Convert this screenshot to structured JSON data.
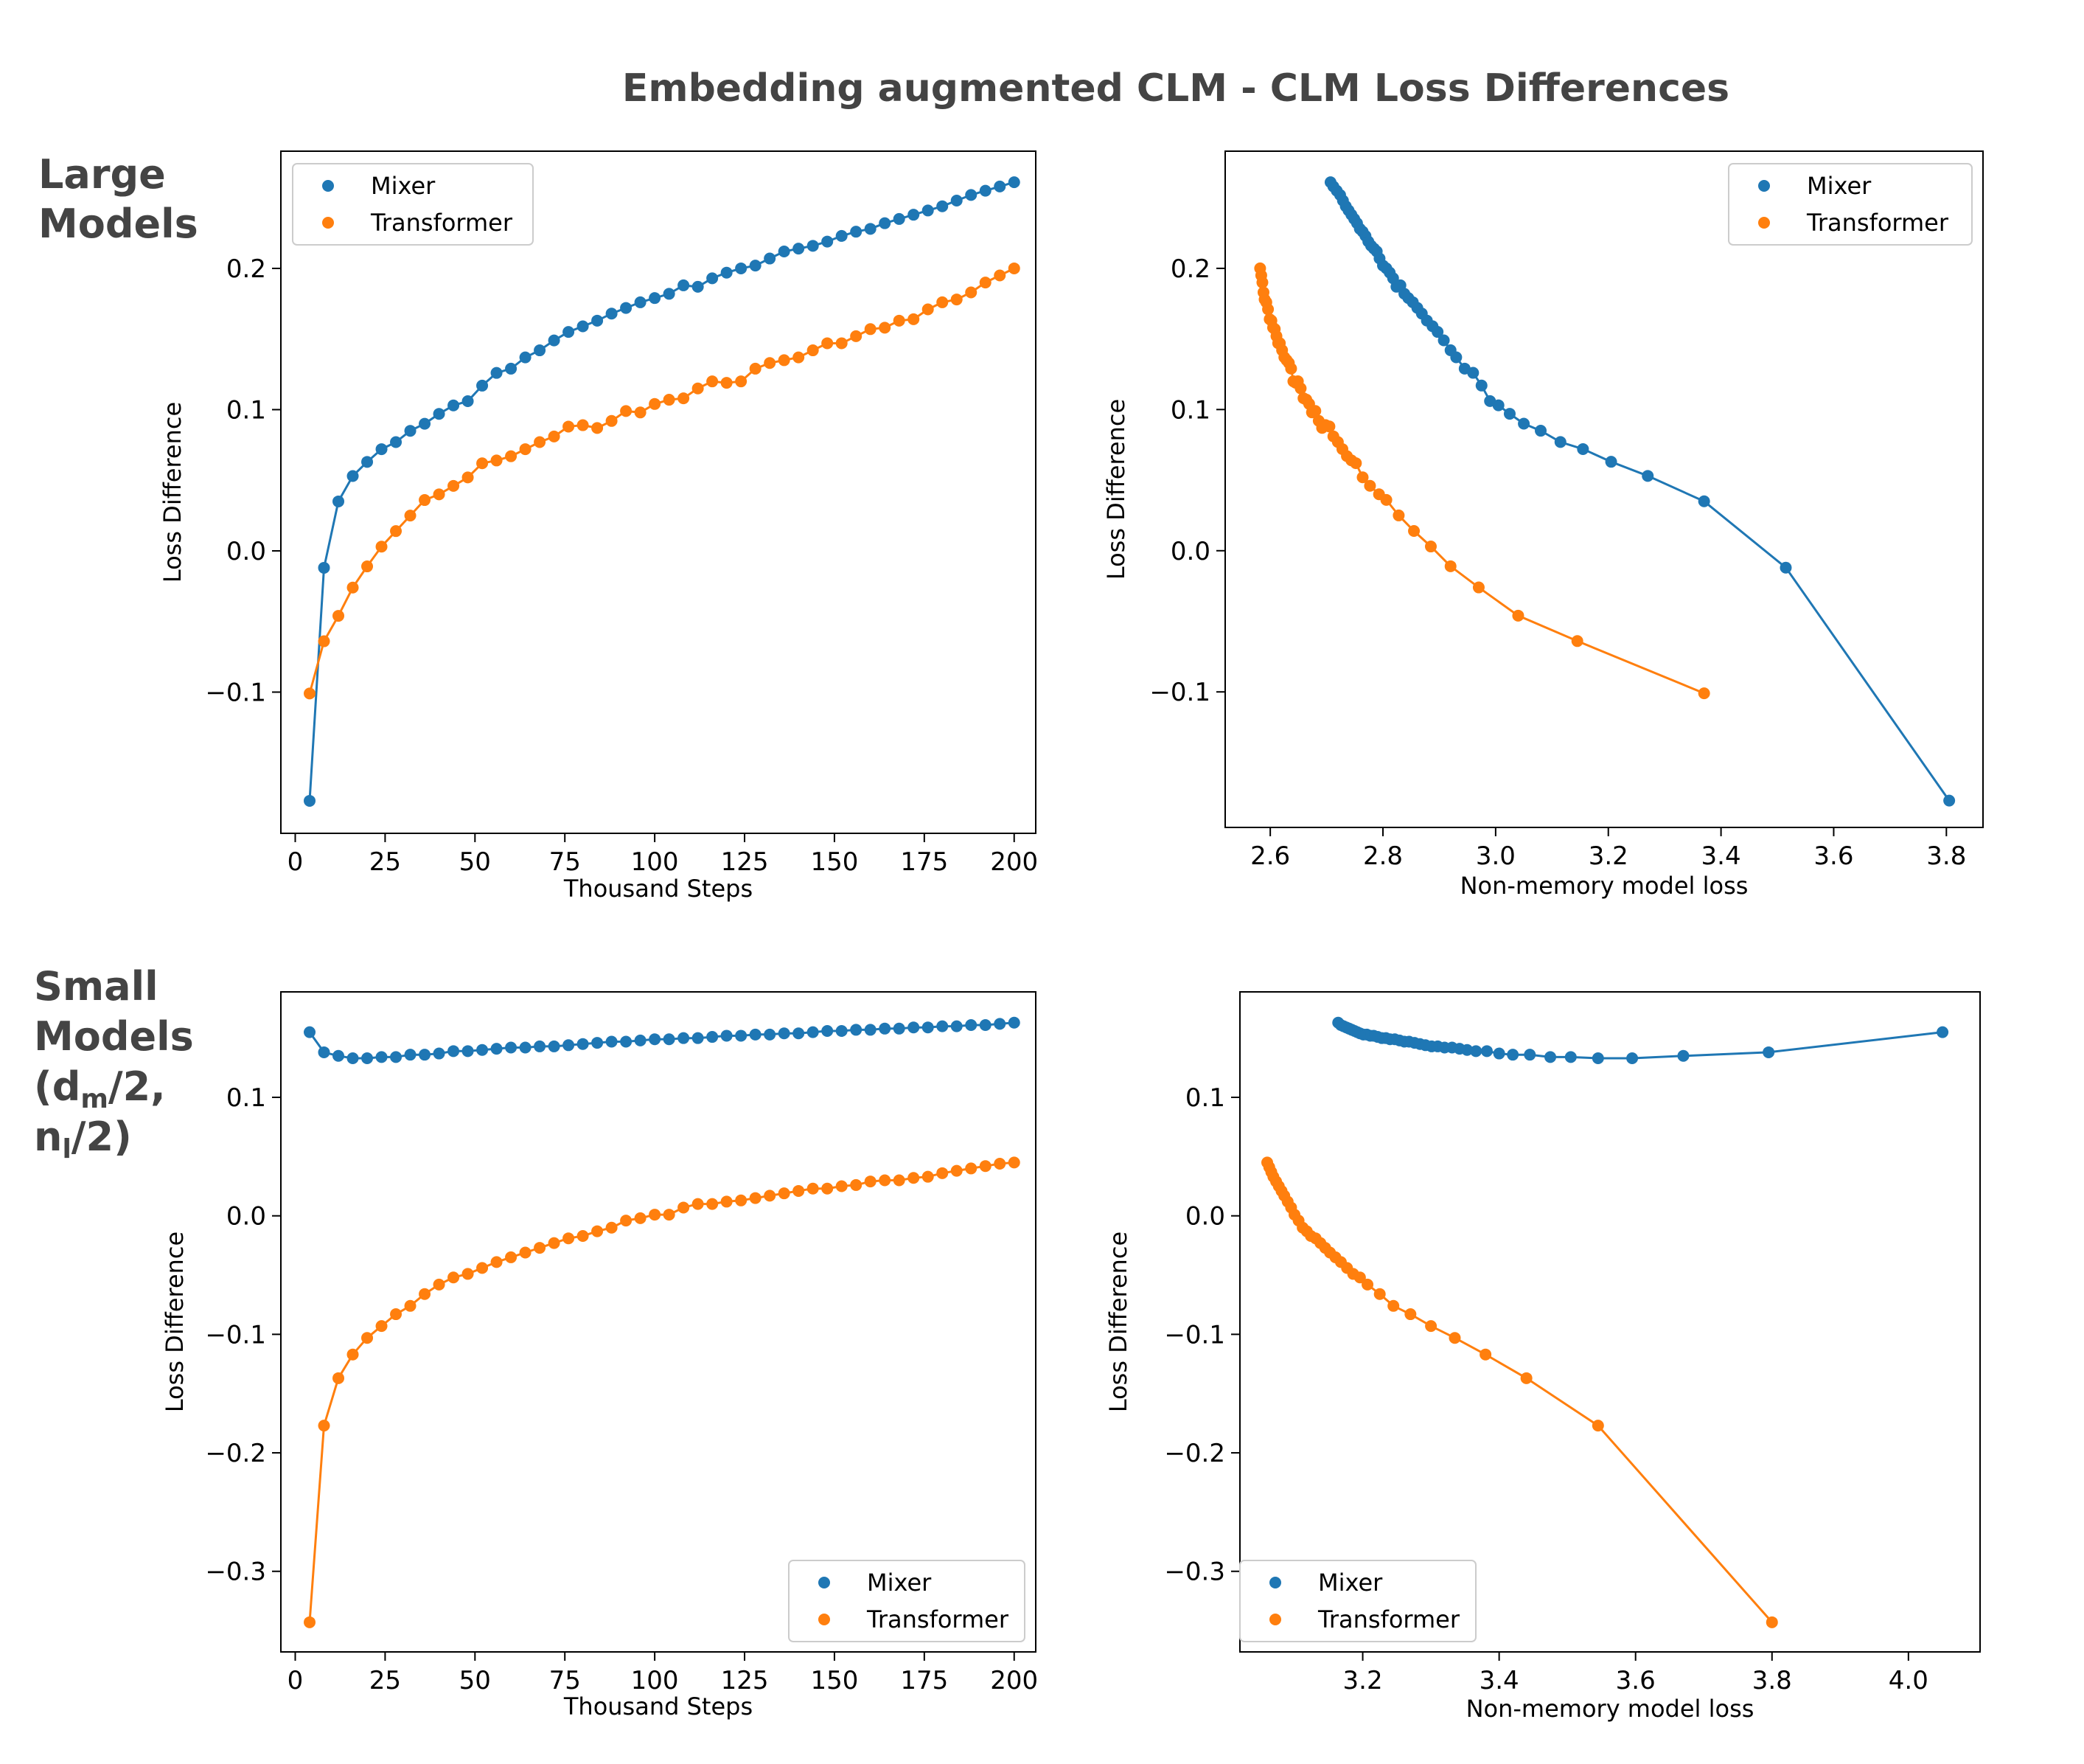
{
  "figure": {
    "title": "Embedding augmented CLM - CLM Loss Differences",
    "row_labels": {
      "large": [
        "Large",
        "Models"
      ],
      "small": {
        "line1": "Small",
        "line2": "Models",
        "d": "d",
        "m": "m",
        "half1": "/2,",
        "n": "n",
        "l": "l",
        "half2": "/2)",
        "open": "("
      }
    }
  },
  "colors": {
    "mixer": "#1f77b4",
    "transformer": "#ff7f0e"
  },
  "chart_data": [
    {
      "id": "large-steps",
      "type": "line",
      "title": "",
      "xlabel": "Thousand Steps",
      "ylabel": "Loss Difference",
      "xlim": [
        -4,
        206
      ],
      "ylim": [
        -0.2,
        0.283
      ],
      "xticks": [
        0,
        25,
        50,
        75,
        100,
        125,
        150,
        175,
        200
      ],
      "yticks": [
        -0.1,
        0.0,
        0.1,
        0.2
      ],
      "legend": "top-left",
      "series": [
        {
          "name": "Mixer",
          "x": [
            4,
            8,
            12,
            16,
            20,
            24,
            28,
            32,
            36,
            40,
            44,
            48,
            52,
            56,
            60,
            64,
            68,
            72,
            76,
            80,
            84,
            88,
            92,
            96,
            100,
            104,
            108,
            112,
            116,
            120,
            124,
            128,
            132,
            136,
            140,
            144,
            148,
            152,
            156,
            160,
            164,
            168,
            172,
            176,
            180,
            184,
            188,
            192,
            196,
            200
          ],
          "y": [
            -0.177,
            -0.012,
            0.035,
            0.053,
            0.063,
            0.072,
            0.077,
            0.085,
            0.09,
            0.097,
            0.103,
            0.106,
            0.117,
            0.126,
            0.129,
            0.137,
            0.142,
            0.149,
            0.155,
            0.159,
            0.163,
            0.168,
            0.172,
            0.176,
            0.179,
            0.182,
            0.188,
            0.187,
            0.193,
            0.197,
            0.2,
            0.202,
            0.207,
            0.212,
            0.214,
            0.216,
            0.219,
            0.223,
            0.226,
            0.228,
            0.232,
            0.235,
            0.238,
            0.241,
            0.244,
            0.248,
            0.252,
            0.255,
            0.258,
            0.261
          ]
        },
        {
          "name": "Transformer",
          "x": [
            4,
            8,
            12,
            16,
            20,
            24,
            28,
            32,
            36,
            40,
            44,
            48,
            52,
            56,
            60,
            64,
            68,
            72,
            76,
            80,
            84,
            88,
            92,
            96,
            100,
            104,
            108,
            112,
            116,
            120,
            124,
            128,
            132,
            136,
            140,
            144,
            148,
            152,
            156,
            160,
            164,
            168,
            172,
            176,
            180,
            184,
            188,
            192,
            196,
            200
          ],
          "y": [
            -0.101,
            -0.064,
            -0.046,
            -0.026,
            -0.011,
            0.003,
            0.014,
            0.025,
            0.036,
            0.04,
            0.046,
            0.052,
            0.062,
            0.064,
            0.067,
            0.072,
            0.077,
            0.081,
            0.088,
            0.089,
            0.087,
            0.092,
            0.099,
            0.098,
            0.104,
            0.107,
            0.108,
            0.115,
            0.12,
            0.119,
            0.12,
            0.129,
            0.133,
            0.135,
            0.137,
            0.142,
            0.147,
            0.147,
            0.152,
            0.157,
            0.158,
            0.163,
            0.164,
            0.171,
            0.176,
            0.178,
            0.183,
            0.19,
            0.195,
            0.2
          ]
        }
      ]
    },
    {
      "id": "large-loss",
      "type": "line",
      "title": "",
      "xlabel": "Non-memory model loss",
      "ylabel": "Loss Difference",
      "xlim": [
        2.52,
        3.865
      ],
      "ylim": [
        -0.196,
        0.283
      ],
      "xticks": [
        2.6,
        2.8,
        3.0,
        3.2,
        3.4,
        3.6,
        3.8
      ],
      "yticks": [
        -0.1,
        0.0,
        0.1,
        0.2
      ],
      "legend": "top-right",
      "series": [
        {
          "name": "Mixer",
          "x": [
            3.805,
            3.515,
            3.37,
            3.27,
            3.205,
            3.155,
            3.115,
            3.08,
            3.05,
            3.025,
            3.005,
            2.99,
            2.975,
            2.96,
            2.945,
            2.93,
            2.92,
            2.908,
            2.897,
            2.888,
            2.878,
            2.869,
            2.861,
            2.853,
            2.845,
            2.838,
            2.831,
            2.824,
            2.818,
            2.812,
            2.806,
            2.8,
            2.794,
            2.789,
            2.784,
            2.779,
            2.774,
            2.769,
            2.764,
            2.759,
            2.754,
            2.749,
            2.744,
            2.739,
            2.734,
            2.729,
            2.724,
            2.718,
            2.712,
            2.707
          ],
          "y": [
            -0.177,
            -0.012,
            0.035,
            0.053,
            0.063,
            0.072,
            0.077,
            0.085,
            0.09,
            0.097,
            0.103,
            0.106,
            0.117,
            0.126,
            0.129,
            0.137,
            0.142,
            0.149,
            0.155,
            0.159,
            0.163,
            0.168,
            0.172,
            0.176,
            0.179,
            0.182,
            0.188,
            0.187,
            0.193,
            0.197,
            0.2,
            0.202,
            0.207,
            0.212,
            0.214,
            0.216,
            0.219,
            0.223,
            0.226,
            0.228,
            0.232,
            0.235,
            0.238,
            0.241,
            0.244,
            0.248,
            0.252,
            0.255,
            0.258,
            0.261
          ]
        },
        {
          "name": "Transformer",
          "x": [
            3.37,
            3.145,
            3.04,
            2.97,
            2.92,
            2.885,
            2.855,
            2.828,
            2.806,
            2.793,
            2.777,
            2.764,
            2.752,
            2.744,
            2.736,
            2.728,
            2.72,
            2.712,
            2.705,
            2.698,
            2.692,
            2.686,
            2.68,
            2.674,
            2.669,
            2.664,
            2.659,
            2.654,
            2.649,
            2.645,
            2.641,
            2.637,
            2.633,
            2.629,
            2.625,
            2.621,
            2.617,
            2.614,
            2.611,
            2.608,
            2.605,
            2.602,
            2.599,
            2.596,
            2.593,
            2.59,
            2.588,
            2.586,
            2.584,
            2.582
          ],
          "y": [
            -0.101,
            -0.064,
            -0.046,
            -0.026,
            -0.011,
            0.003,
            0.014,
            0.025,
            0.036,
            0.04,
            0.046,
            0.052,
            0.062,
            0.064,
            0.067,
            0.072,
            0.077,
            0.081,
            0.088,
            0.089,
            0.087,
            0.092,
            0.099,
            0.098,
            0.104,
            0.107,
            0.108,
            0.115,
            0.12,
            0.119,
            0.12,
            0.129,
            0.133,
            0.135,
            0.137,
            0.142,
            0.147,
            0.147,
            0.152,
            0.157,
            0.158,
            0.163,
            0.164,
            0.171,
            0.176,
            0.178,
            0.183,
            0.19,
            0.195,
            0.2
          ]
        }
      ]
    },
    {
      "id": "small-steps",
      "type": "line",
      "title": "",
      "xlabel": "Thousand Steps",
      "ylabel": "Loss Difference",
      "xlim": [
        -4,
        206
      ],
      "ylim": [
        -0.368,
        0.189
      ],
      "xticks": [
        0,
        25,
        50,
        75,
        100,
        125,
        150,
        175,
        200
      ],
      "yticks": [
        -0.3,
        -0.2,
        -0.1,
        0.0,
        0.1
      ],
      "legend": "bottom-right",
      "series": [
        {
          "name": "Mixer",
          "x": [
            4,
            8,
            12,
            16,
            20,
            24,
            28,
            32,
            36,
            40,
            44,
            48,
            52,
            56,
            60,
            64,
            68,
            72,
            76,
            80,
            84,
            88,
            92,
            96,
            100,
            104,
            108,
            112,
            116,
            120,
            124,
            128,
            132,
            136,
            140,
            144,
            148,
            152,
            156,
            160,
            164,
            168,
            172,
            176,
            180,
            184,
            188,
            192,
            196,
            200
          ],
          "y": [
            0.155,
            0.138,
            0.135,
            0.133,
            0.133,
            0.134,
            0.134,
            0.136,
            0.136,
            0.137,
            0.139,
            0.139,
            0.14,
            0.141,
            0.142,
            0.142,
            0.143,
            0.143,
            0.144,
            0.145,
            0.146,
            0.147,
            0.147,
            0.148,
            0.149,
            0.149,
            0.15,
            0.15,
            0.151,
            0.152,
            0.152,
            0.153,
            0.153,
            0.154,
            0.154,
            0.155,
            0.156,
            0.156,
            0.157,
            0.157,
            0.158,
            0.158,
            0.159,
            0.159,
            0.16,
            0.16,
            0.161,
            0.161,
            0.162,
            0.163
          ]
        },
        {
          "name": "Transformer",
          "x": [
            4,
            8,
            12,
            16,
            20,
            24,
            28,
            32,
            36,
            40,
            44,
            48,
            52,
            56,
            60,
            64,
            68,
            72,
            76,
            80,
            84,
            88,
            92,
            96,
            100,
            104,
            108,
            112,
            116,
            120,
            124,
            128,
            132,
            136,
            140,
            144,
            148,
            152,
            156,
            160,
            164,
            168,
            172,
            176,
            180,
            184,
            188,
            192,
            196,
            200
          ],
          "y": [
            -0.343,
            -0.177,
            -0.137,
            -0.117,
            -0.103,
            -0.093,
            -0.083,
            -0.076,
            -0.066,
            -0.058,
            -0.052,
            -0.049,
            -0.044,
            -0.039,
            -0.035,
            -0.031,
            -0.027,
            -0.023,
            -0.019,
            -0.017,
            -0.013,
            -0.01,
            -0.004,
            -0.002,
            0.001,
            0.001,
            0.007,
            0.01,
            0.01,
            0.012,
            0.013,
            0.015,
            0.017,
            0.019,
            0.021,
            0.023,
            0.023,
            0.025,
            0.026,
            0.029,
            0.03,
            0.03,
            0.032,
            0.033,
            0.036,
            0.038,
            0.04,
            0.042,
            0.044,
            0.045
          ]
        }
      ]
    },
    {
      "id": "small-loss",
      "type": "line",
      "title": "",
      "xlabel": "Non-memory model loss",
      "ylabel": "Loss Difference",
      "xlim": [
        3.02,
        4.105
      ],
      "ylim": [
        -0.368,
        0.189
      ],
      "xticks": [
        3.2,
        3.4,
        3.6,
        3.8,
        4.0
      ],
      "yticks": [
        -0.3,
        -0.2,
        -0.1,
        0.0,
        0.1
      ],
      "legend": "bottom-left",
      "series": [
        {
          "name": "Mixer",
          "x": [
            4.05,
            3.795,
            3.67,
            3.595,
            3.545,
            3.505,
            3.475,
            3.445,
            3.42,
            3.4,
            3.382,
            3.366,
            3.353,
            3.342,
            3.331,
            3.32,
            3.31,
            3.301,
            3.292,
            3.284,
            3.276,
            3.268,
            3.261,
            3.254,
            3.247,
            3.24,
            3.234,
            3.228,
            3.222,
            3.216,
            3.211,
            3.206,
            3.201,
            3.196,
            3.192,
            3.188,
            3.184,
            3.18,
            3.176,
            3.172,
            3.168,
            3.164
          ],
          "y": [
            0.155,
            0.138,
            0.135,
            0.133,
            0.133,
            0.134,
            0.134,
            0.136,
            0.136,
            0.137,
            0.139,
            0.139,
            0.14,
            0.141,
            0.142,
            0.142,
            0.143,
            0.143,
            0.144,
            0.145,
            0.146,
            0.147,
            0.147,
            0.148,
            0.149,
            0.149,
            0.15,
            0.15,
            0.151,
            0.152,
            0.152,
            0.153,
            0.153,
            0.154,
            0.155,
            0.156,
            0.157,
            0.158,
            0.159,
            0.16,
            0.161,
            0.163
          ]
        },
        {
          "name": "Transformer",
          "x": [
            3.8,
            3.545,
            3.44,
            3.38,
            3.335,
            3.3,
            3.27,
            3.245,
            3.225,
            3.207,
            3.196,
            3.186,
            3.177,
            3.168,
            3.16,
            3.152,
            3.145,
            3.138,
            3.131,
            3.124,
            3.118,
            3.112,
            3.106,
            3.1,
            3.095,
            3.09,
            3.085,
            3.081,
            3.077,
            3.073,
            3.069,
            3.066,
            3.063,
            3.06
          ],
          "y": [
            -0.343,
            -0.177,
            -0.137,
            -0.117,
            -0.103,
            -0.093,
            -0.083,
            -0.076,
            -0.066,
            -0.058,
            -0.052,
            -0.049,
            -0.044,
            -0.039,
            -0.035,
            -0.031,
            -0.027,
            -0.023,
            -0.019,
            -0.017,
            -0.013,
            -0.01,
            -0.004,
            0.001,
            0.007,
            0.012,
            0.017,
            0.021,
            0.025,
            0.029,
            0.033,
            0.037,
            0.041,
            0.045
          ]
        }
      ]
    }
  ]
}
